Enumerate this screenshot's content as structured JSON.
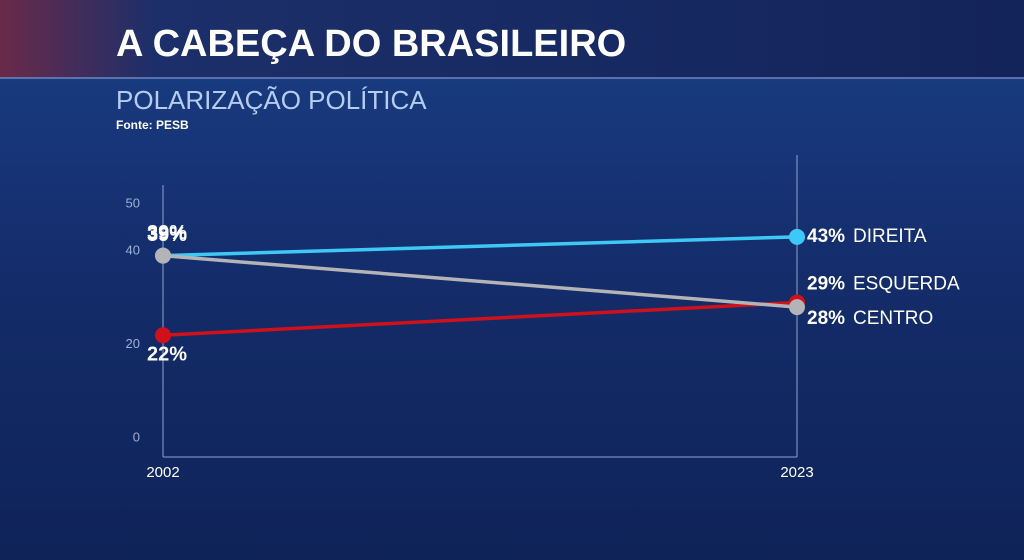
{
  "chart_data": {
    "type": "line",
    "title": "A CABEÇA DO BRASILEIRO",
    "subtitle": "POLARIZAÇÃO POLÍTICA",
    "source": "Fonte: PESB",
    "x": [
      "2002",
      "2023"
    ],
    "series": [
      {
        "name": "DIREITA",
        "color": "#3ec8f5",
        "values": [
          39,
          43
        ],
        "value_labels": [
          "39%",
          "43%"
        ]
      },
      {
        "name": "ESQUERDA",
        "color": "#d0101a",
        "values": [
          22,
          29
        ],
        "value_labels": [
          "22%",
          "29%"
        ]
      },
      {
        "name": "CENTRO",
        "color": "#b4b4b8",
        "values": [
          39,
          28
        ],
        "value_labels": [
          "39%",
          "28%"
        ]
      }
    ],
    "ylim": [
      -4,
      56
    ],
    "yticks": [
      0,
      20,
      40,
      50
    ]
  }
}
